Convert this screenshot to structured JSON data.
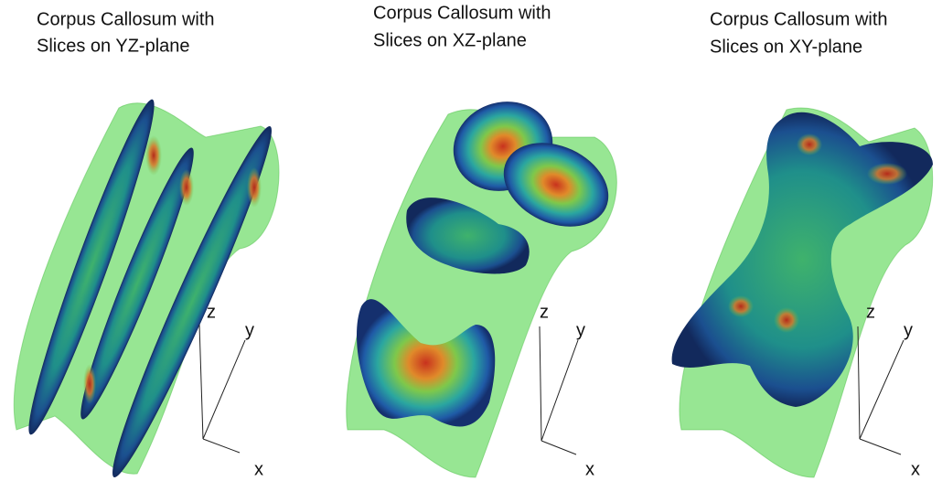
{
  "panels": [
    {
      "title": [
        "Corpus Callosum with",
        "Slices on YZ-plane"
      ],
      "axes": [
        "z",
        "y",
        "x"
      ]
    },
    {
      "title": [
        "Corpus Callosum with",
        "Slices on XZ-plane"
      ],
      "axes": [
        "z",
        "y",
        "x"
      ]
    },
    {
      "title": [
        "Corpus Callosum with",
        "Slices on XY-plane"
      ],
      "axes": [
        "z",
        "y",
        "x"
      ]
    }
  ]
}
